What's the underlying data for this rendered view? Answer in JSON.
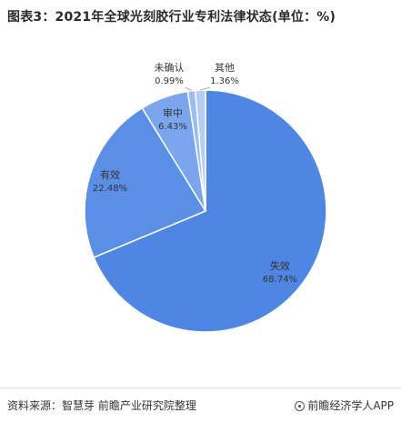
{
  "title": "图表3：2021年全球光刻胶行业专利法律状态(单位：%)",
  "footer": {
    "source": "资料来源：智慧芽 前瞻产业研究院整理",
    "brand": "前瞻经济学人APP"
  },
  "chart_data": {
    "type": "pie",
    "title": "图表3：2021年全球光刻胶行业专利法律状态(单位：%)",
    "unit": "%",
    "slices": [
      {
        "label": "失效",
        "value": 68.74,
        "display": "68.74%",
        "color": "#4f86e3"
      },
      {
        "label": "有效",
        "value": 22.48,
        "display": "22.48%",
        "color": "#5b8fe6"
      },
      {
        "label": "审中",
        "value": 6.43,
        "display": "6.43%",
        "color": "#7ba6ed"
      },
      {
        "label": "未确认",
        "value": 0.99,
        "display": "0.99%",
        "color": "#9dbdf2"
      },
      {
        "label": "其他",
        "value": 1.36,
        "display": "1.36%",
        "color": "#b5cdf5"
      }
    ]
  }
}
